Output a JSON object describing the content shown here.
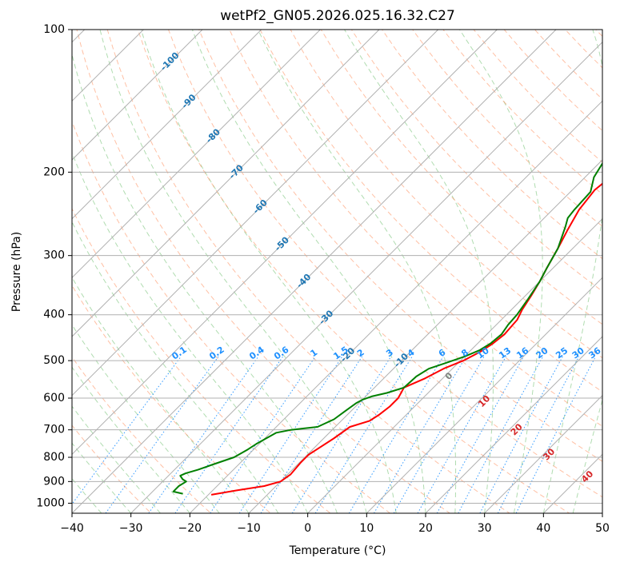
{
  "chart_data": {
    "type": "line",
    "title": "wetPf2_GN05.2026.025.16.32.C27",
    "xlabel": "Temperature (°C)",
    "ylabel": "Pressure (hPa)",
    "xlim": [
      -40,
      50
    ],
    "ylim": [
      1050,
      100
    ],
    "x_ticks": [
      -40,
      -30,
      -20,
      -10,
      0,
      10,
      20,
      30,
      40,
      50
    ],
    "x_tick_labels": [
      "−40",
      "−30",
      "−20",
      "−10",
      "0",
      "10",
      "20",
      "30",
      "40",
      "50"
    ],
    "y_ticks": [
      100,
      200,
      300,
      400,
      500,
      600,
      700,
      800,
      900,
      1000
    ],
    "y_tick_labels": [
      "100",
      "200",
      "300",
      "400",
      "500",
      "600",
      "700",
      "800",
      "900",
      "1000"
    ],
    "isotherm_labels": [
      "-100",
      "-90",
      "-80",
      "-70",
      "-60",
      "-50",
      "-40",
      "-30",
      "-20",
      "-10"
    ],
    "mixing_ratio_labels": [
      "0.1",
      "0.2",
      "0.4",
      "0.6",
      "1",
      "1.5",
      "2",
      "3",
      "4",
      "6",
      "8",
      "10",
      "13",
      "16",
      "20",
      "25",
      "30",
      "36"
    ],
    "mixing_ratios": [
      0.1,
      0.2,
      0.4,
      0.6,
      1,
      1.5,
      2,
      3,
      4,
      6,
      8,
      10,
      13,
      16,
      20,
      25,
      30,
      36
    ],
    "warm_isotherm_labels": [
      "0",
      "10",
      "20",
      "30",
      "40"
    ],
    "colors": {
      "temperature": "#ff0000",
      "dewpoint": "#008000",
      "isotherm_label": "#1f77b4",
      "mixing_label": "#1e90ff",
      "warm_label": "#d62728",
      "zero_label": "#808080",
      "dry_adiabat": "#ff8c5a",
      "moist_adiabat": "#7cc47c",
      "grid": "#b0b0b0"
    },
    "series": [
      {
        "name": "Temperature",
        "points": [
          [
            -19.5,
            960
          ],
          [
            -16,
            940
          ],
          [
            -12,
            920
          ],
          [
            -10,
            900
          ],
          [
            -9.5,
            870
          ],
          [
            -9.8,
            820
          ],
          [
            -9.8,
            790
          ],
          [
            -8.3,
            730
          ],
          [
            -7.5,
            690
          ],
          [
            -5.2,
            670
          ],
          [
            -4.6,
            650
          ],
          [
            -4.2,
            625
          ],
          [
            -4.2,
            600
          ],
          [
            -5,
            570
          ],
          [
            -3,
            545
          ],
          [
            -1.5,
            520
          ],
          [
            0.5,
            500
          ],
          [
            1.8,
            480
          ],
          [
            2.6,
            460
          ],
          [
            3,
            440
          ],
          [
            2.7,
            410
          ],
          [
            1.8,
            390
          ],
          [
            1,
            365
          ],
          [
            0,
            340
          ],
          [
            -1,
            320
          ],
          [
            -2.5,
            290
          ],
          [
            -4,
            265
          ],
          [
            -5.5,
            240
          ],
          [
            -6.2,
            218
          ],
          [
            -5.5,
            200
          ],
          [
            -3.5,
            192
          ],
          [
            -1,
            186
          ],
          [
            2,
            180
          ],
          [
            4.8,
            172
          ],
          [
            6.4,
            160
          ],
          [
            8.2,
            150
          ],
          [
            10.6,
            140
          ],
          [
            13.2,
            130
          ],
          [
            15.2,
            120
          ],
          [
            16.4,
            110
          ],
          [
            20,
            100
          ]
        ]
      },
      {
        "name": "Dewpoint",
        "points": [
          [
            -24.5,
            955
          ],
          [
            -26.5,
            945
          ],
          [
            -26.5,
            920
          ],
          [
            -26,
            900
          ],
          [
            -27,
            890
          ],
          [
            -28,
            875
          ],
          [
            -27.5,
            865
          ],
          [
            -26,
            850
          ],
          [
            -24.5,
            830
          ],
          [
            -22,
            800
          ],
          [
            -21,
            770
          ],
          [
            -20.5,
            750
          ],
          [
            -19,
            710
          ],
          [
            -17,
            700
          ],
          [
            -13,
            690
          ],
          [
            -11.5,
            665
          ],
          [
            -11,
            640
          ],
          [
            -10.5,
            615
          ],
          [
            -10,
            605
          ],
          [
            -9,
            595
          ],
          [
            -7,
            585
          ],
          [
            -5,
            570
          ],
          [
            -4.8,
            540
          ],
          [
            -4,
            520
          ],
          [
            -2,
            505
          ],
          [
            0,
            490
          ],
          [
            1.5,
            475
          ],
          [
            2.2,
            460
          ],
          [
            2.5,
            440
          ],
          [
            2,
            420
          ],
          [
            1.8,
            400
          ],
          [
            1,
            370
          ],
          [
            0,
            340
          ],
          [
            -1,
            320
          ],
          [
            -2.5,
            290
          ],
          [
            -5,
            260
          ],
          [
            -6,
            250
          ],
          [
            -6.3,
            240
          ],
          [
            -6.6,
            220
          ],
          [
            -8.5,
            205
          ],
          [
            -9.5,
            190
          ],
          [
            -9.6,
            180
          ],
          [
            -10.5,
            172
          ],
          [
            -10.6,
            160
          ],
          [
            -10,
            150
          ],
          [
            -8.8,
            140
          ],
          [
            -7.6,
            130
          ],
          [
            -6.6,
            120
          ],
          [
            -6,
            110
          ],
          [
            -4.6,
            100
          ]
        ]
      }
    ]
  }
}
